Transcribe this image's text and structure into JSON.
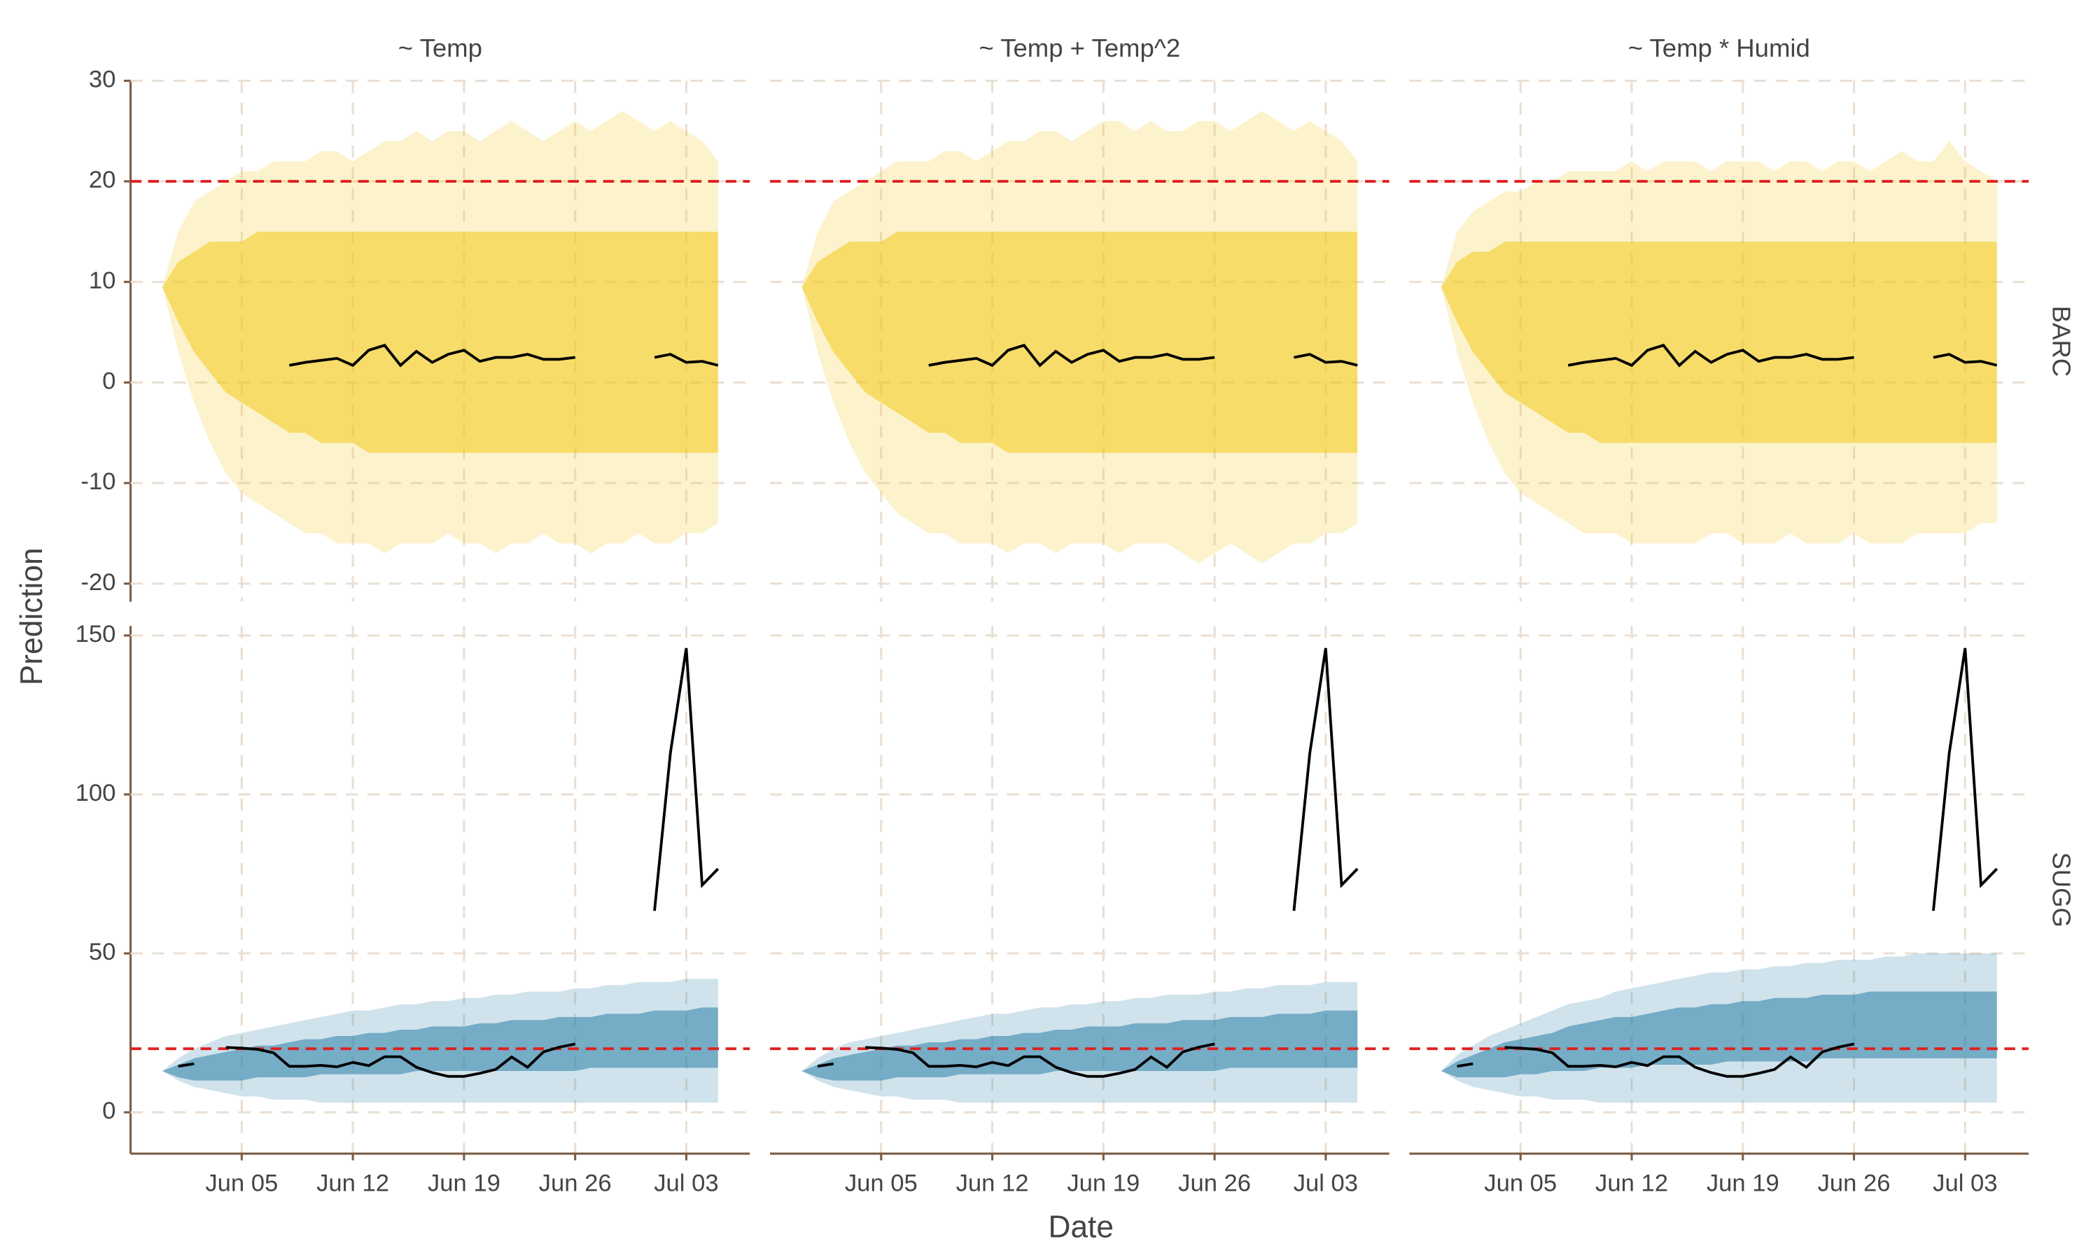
{
  "chart_data": {
    "type": "line",
    "columns": [
      "~ Temp",
      "~ Temp + Temp^2",
      "~ Temp * Humid"
    ],
    "xlabel": "Date",
    "ylabel": "Prediction",
    "x": [
      "--05-31",
      "--06-01",
      "--06-02",
      "--06-03",
      "--06-04",
      "--06-05",
      "--06-06",
      "--06-07",
      "--06-08",
      "--06-09",
      "--06-10",
      "--06-11",
      "--06-12",
      "--06-13",
      "--06-14",
      "--06-15",
      "--06-16",
      "--06-17",
      "--06-18",
      "--06-19",
      "--06-20",
      "--06-21",
      "--06-22",
      "--06-23",
      "--06-24",
      "--06-25",
      "--06-26",
      "--06-27",
      "--06-28",
      "--06-29",
      "--06-30",
      "--07-01",
      "--07-02",
      "--07-03",
      "--07-04",
      "--07-05"
    ],
    "xlim": [
      "--05-29",
      "--07-07"
    ],
    "xticks": [
      {
        "value": "--06-05",
        "label": "Jun 05"
      },
      {
        "value": "--06-12",
        "label": "Jun 12"
      },
      {
        "value": "--06-19",
        "label": "Jun 19"
      },
      {
        "value": "--06-26",
        "label": "Jun 26"
      },
      {
        "value": "--07-03",
        "label": "Jul 03"
      }
    ],
    "grid": true,
    "rows": [
      {
        "name": "BARC",
        "ylim": [
          -21.8,
          30
        ],
        "yticks": [
          -20,
          -10,
          0,
          10,
          20,
          30
        ],
        "threshold": 20,
        "color": "#f2c81a",
        "threshold_color": "#e02020",
        "line_color": "#000000",
        "observed": [
          null,
          null,
          null,
          null,
          null,
          null,
          null,
          null,
          1.7,
          2.0,
          2.2,
          2.4,
          1.7,
          3.2,
          3.7,
          1.7,
          3.1,
          2.0,
          2.8,
          3.2,
          2.1,
          2.5,
          2.5,
          2.8,
          2.3,
          2.3,
          2.5,
          null,
          null,
          null,
          null,
          2.5,
          2.8,
          2.0,
          2.1,
          1.7
        ],
        "panels": [
          {
            "lower": [
              9.5,
              3,
              -2,
              -6,
              -9,
              -11,
              -12,
              -13,
              -14,
              -15,
              -15,
              -16,
              -16,
              -16,
              -17,
              -16,
              -16,
              -16,
              -15,
              -16,
              -16,
              -17,
              -16,
              -16,
              -15,
              -16,
              -16,
              -17,
              -16,
              -16,
              -15,
              -16,
              -16,
              -15,
              -15,
              -14
            ],
            "upper": [
              9.5,
              15,
              18,
              19,
              20,
              21,
              21,
              22,
              22,
              22,
              23,
              23,
              22,
              23,
              24,
              24,
              25,
              24,
              25,
              25,
              24,
              25,
              26,
              25,
              24,
              25,
              26,
              25,
              26,
              27,
              26,
              25,
              26,
              25,
              24,
              22
            ],
            "inner_lower": [
              9.5,
              6,
              3,
              1,
              -1,
              -2,
              -3,
              -4,
              -5,
              -5,
              -6,
              -6,
              -6,
              -7,
              -7,
              -7,
              -7,
              -7,
              -7,
              -7,
              -7,
              -7,
              -7,
              -7,
              -7,
              -7,
              -7,
              -7,
              -7,
              -7,
              -7,
              -7,
              -7,
              -7,
              -7,
              -7
            ],
            "inner_upper": [
              9.5,
              12,
              13,
              14,
              14,
              14,
              15,
              15,
              15,
              15,
              15,
              15,
              15,
              15,
              15,
              15,
              15,
              15,
              15,
              15,
              15,
              15,
              15,
              15,
              15,
              15,
              15,
              15,
              15,
              15,
              15,
              15,
              15,
              15,
              15,
              15
            ]
          },
          {
            "lower": [
              9.5,
              3,
              -2,
              -6,
              -9,
              -11,
              -13,
              -14,
              -15,
              -15,
              -16,
              -16,
              -16,
              -17,
              -16,
              -16,
              -17,
              -16,
              -16,
              -16,
              -17,
              -16,
              -16,
              -16,
              -17,
              -18,
              -17,
              -16,
              -17,
              -18,
              -17,
              -16,
              -16,
              -15,
              -15,
              -14
            ],
            "upper": [
              9.5,
              15,
              18,
              19,
              20,
              21,
              22,
              22,
              22,
              23,
              23,
              22,
              23,
              24,
              24,
              25,
              25,
              24,
              25,
              26,
              26,
              25,
              26,
              25,
              25,
              26,
              26,
              25,
              26,
              27,
              26,
              25,
              26,
              25,
              24,
              22
            ],
            "inner_lower": [
              9.5,
              6,
              3,
              1,
              -1,
              -2,
              -3,
              -4,
              -5,
              -5,
              -6,
              -6,
              -6,
              -7,
              -7,
              -7,
              -7,
              -7,
              -7,
              -7,
              -7,
              -7,
              -7,
              -7,
              -7,
              -7,
              -7,
              -7,
              -7,
              -7,
              -7,
              -7,
              -7,
              -7,
              -7,
              -7
            ],
            "inner_upper": [
              9.5,
              12,
              13,
              14,
              14,
              14,
              15,
              15,
              15,
              15,
              15,
              15,
              15,
              15,
              15,
              15,
              15,
              15,
              15,
              15,
              15,
              15,
              15,
              15,
              15,
              15,
              15,
              15,
              15,
              15,
              15,
              15,
              15,
              15,
              15,
              15
            ]
          },
          {
            "lower": [
              9.5,
              3,
              -2,
              -6,
              -9,
              -11,
              -12,
              -13,
              -14,
              -15,
              -15,
              -15,
              -16,
              -16,
              -16,
              -16,
              -16,
              -15,
              -15,
              -16,
              -16,
              -16,
              -15,
              -16,
              -16,
              -16,
              -15,
              -16,
              -16,
              -16,
              -15,
              -15,
              -15,
              -15,
              -14,
              -14
            ],
            "upper": [
              9.5,
              15,
              17,
              18,
              19,
              19,
              20,
              20,
              21,
              21,
              21,
              21,
              22,
              21,
              22,
              22,
              22,
              21,
              22,
              22,
              22,
              21,
              22,
              22,
              21,
              22,
              22,
              21,
              22,
              23,
              22,
              22,
              24,
              22,
              21,
              20
            ],
            "inner_lower": [
              9.5,
              6,
              3,
              1,
              -1,
              -2,
              -3,
              -4,
              -5,
              -5,
              -6,
              -6,
              -6,
              -6,
              -6,
              -6,
              -6,
              -6,
              -6,
              -6,
              -6,
              -6,
              -6,
              -6,
              -6,
              -6,
              -6,
              -6,
              -6,
              -6,
              -6,
              -6,
              -6,
              -6,
              -6,
              -6
            ],
            "inner_upper": [
              9.5,
              12,
              13,
              13,
              14,
              14,
              14,
              14,
              14,
              14,
              14,
              14,
              14,
              14,
              14,
              14,
              14,
              14,
              14,
              14,
              14,
              14,
              14,
              14,
              14,
              14,
              14,
              14,
              14,
              14,
              14,
              14,
              14,
              14,
              14,
              14
            ]
          }
        ]
      },
      {
        "name": "SUGG",
        "ylim": [
          -13,
          153
        ],
        "yticks": [
          0,
          50,
          100,
          150
        ],
        "threshold": 20,
        "color": "#2a7fa8",
        "threshold_color": "#e02020",
        "line_color": "#000000",
        "observed": [
          null,
          14.5,
          15.3,
          null,
          20.4,
          20.2,
          19.8,
          18.7,
          14.5,
          14.5,
          14.8,
          14.3,
          15.7,
          14.7,
          17.5,
          17.5,
          14.2,
          12.5,
          11.3,
          11.3,
          12.3,
          13.5,
          17.4,
          14.2,
          19.0,
          20.5,
          21.5,
          null,
          null,
          null,
          null,
          63.4,
          113,
          146,
          71.5,
          76.6
        ],
        "panels": [
          {
            "lower": [
              13,
              10,
              8,
              7,
              6,
              5,
              5,
              4,
              4,
              4,
              3,
              3,
              3,
              3,
              3,
              3,
              3,
              3,
              3,
              3,
              3,
              3,
              3,
              3,
              3,
              3,
              3,
              3,
              3,
              3,
              3,
              3,
              3,
              3,
              3,
              3
            ],
            "upper": [
              13,
              17,
              20,
              22,
              24,
              25,
              26,
              27,
              28,
              29,
              30,
              31,
              32,
              32,
              33,
              34,
              34,
              35,
              35,
              36,
              36,
              37,
              37,
              38,
              38,
              38,
              39,
              39,
              40,
              40,
              41,
              41,
              41,
              42,
              42,
              42
            ],
            "inner_lower": [
              13,
              11,
              10,
              10,
              10,
              10,
              11,
              11,
              11,
              11,
              12,
              12,
              12,
              12,
              12,
              12,
              13,
              13,
              13,
              13,
              13,
              13,
              13,
              13,
              13,
              13,
              13,
              14,
              14,
              14,
              14,
              14,
              14,
              14,
              14,
              14
            ],
            "inner_upper": [
              13,
              15,
              17,
              18,
              19,
              20,
              21,
              21,
              22,
              23,
              23,
              24,
              24,
              25,
              25,
              26,
              26,
              27,
              27,
              27,
              28,
              28,
              29,
              29,
              29,
              30,
              30,
              30,
              31,
              31,
              31,
              32,
              32,
              32,
              33,
              33
            ]
          },
          {
            "lower": [
              13,
              10,
              8,
              7,
              6,
              5,
              5,
              4,
              4,
              4,
              3,
              3,
              3,
              3,
              3,
              3,
              3,
              3,
              3,
              3,
              3,
              3,
              3,
              3,
              3,
              3,
              3,
              3,
              3,
              3,
              3,
              3,
              3,
              3,
              3,
              3
            ],
            "upper": [
              13,
              17,
              20,
              22,
              23,
              24,
              25,
              26,
              27,
              28,
              29,
              30,
              31,
              31,
              32,
              33,
              33,
              34,
              34,
              35,
              35,
              36,
              36,
              37,
              37,
              37,
              38,
              38,
              39,
              39,
              40,
              40,
              40,
              41,
              41,
              41
            ],
            "inner_lower": [
              13,
              11,
              10,
              10,
              10,
              10,
              11,
              11,
              11,
              11,
              12,
              12,
              12,
              12,
              12,
              12,
              13,
              13,
              13,
              13,
              13,
              13,
              13,
              13,
              13,
              13,
              13,
              14,
              14,
              14,
              14,
              14,
              14,
              14,
              14,
              14
            ],
            "inner_upper": [
              13,
              15,
              17,
              18,
              19,
              20,
              21,
              21,
              22,
              22,
              23,
              23,
              24,
              24,
              25,
              25,
              26,
              26,
              27,
              27,
              27,
              28,
              28,
              28,
              29,
              29,
              29,
              30,
              30,
              30,
              31,
              31,
              31,
              32,
              32,
              32
            ]
          },
          {
            "lower": [
              13,
              10,
              8,
              7,
              6,
              5,
              5,
              4,
              4,
              4,
              3,
              3,
              3,
              3,
              3,
              3,
              3,
              3,
              3,
              3,
              3,
              3,
              3,
              3,
              3,
              3,
              3,
              3,
              3,
              3,
              3,
              3,
              3,
              3,
              3,
              3
            ],
            "upper": [
              13,
              18,
              21,
              24,
              26,
              28,
              30,
              32,
              34,
              35,
              36,
              38,
              39,
              40,
              41,
              42,
              43,
              44,
              44,
              45,
              45,
              46,
              46,
              47,
              47,
              48,
              48,
              48,
              49,
              49,
              50,
              50,
              50,
              50,
              50,
              50
            ],
            "inner_lower": [
              13,
              11,
              11,
              11,
              11,
              12,
              12,
              13,
              13,
              13,
              14,
              14,
              14,
              15,
              15,
              15,
              15,
              15,
              16,
              16,
              16,
              16,
              16,
              16,
              17,
              17,
              17,
              17,
              17,
              17,
              17,
              17,
              17,
              17,
              17,
              17
            ],
            "inner_upper": [
              13,
              16,
              18,
              20,
              22,
              23,
              24,
              25,
              27,
              28,
              29,
              30,
              30,
              31,
              32,
              33,
              33,
              34,
              34,
              35,
              35,
              36,
              36,
              36,
              37,
              37,
              37,
              38,
              38,
              38,
              38,
              38,
              38,
              38,
              38,
              38
            ]
          }
        ]
      }
    ]
  }
}
